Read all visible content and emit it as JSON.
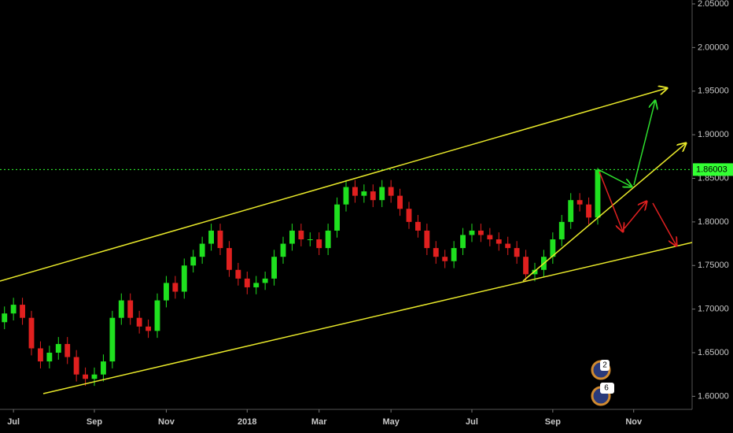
{
  "chart_data": {
    "type": "candlestick",
    "categories": [
      null,
      "Jul",
      null,
      null,
      null,
      null,
      null,
      null,
      null,
      null,
      "Sep",
      null,
      null,
      null,
      null,
      null,
      null,
      null,
      "Nov",
      null,
      null,
      null,
      null,
      null,
      null,
      null,
      null,
      "2018",
      null,
      null,
      null,
      null,
      null,
      null,
      null,
      "Mar",
      null,
      null,
      null,
      null,
      null,
      null,
      null,
      "May",
      null,
      null,
      null,
      null,
      null,
      null,
      null,
      null,
      "Jul",
      null,
      null,
      null,
      null,
      null,
      null,
      null,
      null,
      "Sep",
      null,
      null,
      null,
      null,
      null,
      null,
      null,
      null,
      "Nov",
      null,
      null,
      null,
      null,
      null,
      null
    ],
    "open": [
      1.685,
      1.695,
      1.705,
      1.69,
      1.655,
      1.64,
      1.65,
      1.66,
      1.645,
      1.625,
      1.62,
      1.625,
      1.64,
      1.69,
      1.71,
      1.69,
      1.68,
      1.675,
      1.71,
      1.73,
      1.72,
      1.75,
      1.76,
      1.775,
      1.79,
      1.77,
      1.745,
      1.735,
      1.725,
      1.73,
      1.735,
      1.76,
      1.775,
      1.79,
      1.78,
      1.78,
      1.77,
      1.79,
      1.82,
      1.84,
      1.83,
      1.835,
      1.825,
      1.84,
      1.83,
      1.815,
      1.8,
      1.79,
      1.77,
      1.76,
      1.755,
      1.77,
      1.785,
      1.79,
      1.785,
      1.78,
      1.775,
      1.77,
      1.76,
      1.74,
      1.745,
      1.76,
      1.78,
      1.8,
      1.825,
      1.82,
      1.805,
      null,
      null,
      null,
      null,
      null,
      null,
      null,
      null,
      null,
      null
    ],
    "high": [
      1.703,
      1.713,
      1.713,
      1.698,
      1.663,
      1.658,
      1.668,
      1.668,
      1.653,
      1.633,
      1.633,
      1.648,
      1.698,
      1.718,
      1.718,
      1.698,
      1.688,
      1.718,
      1.738,
      1.738,
      1.758,
      1.768,
      1.783,
      1.798,
      1.798,
      1.778,
      1.753,
      1.743,
      1.738,
      1.743,
      1.768,
      1.783,
      1.798,
      1.798,
      1.788,
      1.788,
      1.798,
      1.828,
      1.848,
      1.848,
      1.843,
      1.843,
      1.848,
      1.848,
      1.838,
      1.823,
      1.808,
      1.798,
      1.778,
      1.768,
      1.778,
      1.793,
      1.798,
      1.798,
      1.793,
      1.788,
      1.783,
      1.778,
      1.768,
      1.753,
      1.768,
      1.788,
      1.808,
      1.833,
      1.833,
      1.828,
      1.862,
      null,
      null,
      null,
      null,
      null,
      null,
      null,
      null,
      null,
      null
    ],
    "low": [
      1.677,
      1.687,
      1.682,
      1.647,
      1.632,
      1.632,
      1.642,
      1.637,
      1.617,
      1.612,
      1.612,
      1.617,
      1.632,
      1.682,
      1.682,
      1.672,
      1.667,
      1.667,
      1.702,
      1.712,
      1.712,
      1.742,
      1.752,
      1.767,
      1.762,
      1.737,
      1.727,
      1.717,
      1.717,
      1.722,
      1.727,
      1.752,
      1.767,
      1.772,
      1.772,
      1.762,
      1.762,
      1.782,
      1.812,
      1.822,
      1.822,
      1.817,
      1.817,
      1.822,
      1.807,
      1.792,
      1.782,
      1.762,
      1.752,
      1.747,
      1.747,
      1.762,
      1.777,
      1.777,
      1.772,
      1.767,
      1.762,
      1.752,
      1.732,
      1.732,
      1.737,
      1.752,
      1.772,
      1.792,
      1.812,
      1.797,
      1.797,
      null,
      null,
      null,
      null,
      null,
      null,
      null,
      null,
      null,
      null
    ],
    "close": [
      1.695,
      1.705,
      1.69,
      1.655,
      1.64,
      1.65,
      1.66,
      1.645,
      1.625,
      1.62,
      1.625,
      1.64,
      1.69,
      1.71,
      1.69,
      1.68,
      1.675,
      1.71,
      1.73,
      1.72,
      1.75,
      1.76,
      1.775,
      1.79,
      1.77,
      1.745,
      1.735,
      1.725,
      1.73,
      1.735,
      1.76,
      1.775,
      1.79,
      1.78,
      1.78,
      1.77,
      1.79,
      1.82,
      1.84,
      1.83,
      1.835,
      1.825,
      1.84,
      1.83,
      1.815,
      1.8,
      1.79,
      1.77,
      1.76,
      1.755,
      1.77,
      1.785,
      1.79,
      1.785,
      1.78,
      1.775,
      1.77,
      1.76,
      1.74,
      1.745,
      1.76,
      1.78,
      1.8,
      1.825,
      1.82,
      1.805,
      1.86,
      null,
      null,
      null,
      null,
      null,
      null,
      null,
      null,
      null,
      null
    ],
    "up_color": "#1fe01f",
    "down_color": "#e0201f",
    "last_price": {
      "value": 1.86003,
      "label": "1.86003"
    },
    "last_price_color": "#33ff33",
    "ylim": [
      1.585,
      2.0545
    ],
    "yticks": [
      {
        "value": 1.6,
        "label": "1.60000"
      },
      {
        "value": 1.65,
        "label": "1.65000"
      },
      {
        "value": 1.7,
        "label": "1.70000"
      },
      {
        "value": 1.75,
        "label": "1.75000"
      },
      {
        "value": 1.8,
        "label": "1.80000"
      },
      {
        "value": 1.85,
        "label": "1.85000"
      },
      {
        "value": 1.9,
        "label": "1.90000"
      },
      {
        "value": 1.95,
        "label": "1.95000"
      },
      {
        "value": 2.0,
        "label": "2.00000"
      },
      {
        "value": 2.05,
        "label": "2.05000"
      }
    ],
    "annotations": [
      "2",
      "6"
    ]
  }
}
